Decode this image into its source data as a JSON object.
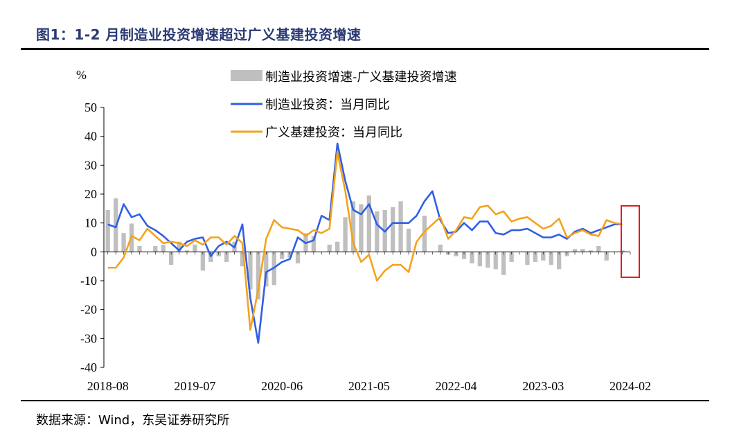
{
  "figure_title": "图1：1-2 月制造业投资增速超过广义基建投资增速",
  "source": "数据来源：Wind，东吴证券研究所",
  "colors": {
    "bar": "#bfbfbf",
    "manufacturing": "#2f5fe5",
    "infrastructure": "#f5a21b",
    "highlight": "#e01e1e"
  },
  "chart_data": {
    "type": "bar+line",
    "title": "",
    "ylabel": "%",
    "ylim": [
      -40,
      50
    ],
    "yticks": [
      50,
      40,
      30,
      20,
      10,
      0,
      -10,
      -20,
      -30,
      -40
    ],
    "xtick_labels": [
      "2018-08",
      "2019-07",
      "2020-06",
      "2021-05",
      "2022-04",
      "2023-03",
      "2024-02"
    ],
    "xtick_indices": [
      0,
      11,
      22,
      33,
      44,
      55,
      66
    ],
    "legend": [
      "制造业投资增速-广义基建投资增速",
      "制造业投资：当月同比",
      "广义基建投资：当月同比"
    ],
    "n_points": 67,
    "series": [
      {
        "name": "制造业投资增速-广义基建投资增速",
        "kind": "bar",
        "values": [
          14.5,
          18.5,
          6.5,
          9.8,
          2.0,
          null,
          2.0,
          2.5,
          -4.5,
          3.5,
          0.5,
          2.5,
          -6.5,
          -3.5,
          -1.5,
          -3.5,
          3.5,
          -5,
          -13,
          -16.5,
          -12,
          -11.5,
          -2.5,
          -2.0,
          -4.0,
          6.5,
          5.5,
          null,
          2.5,
          3.5,
          12.0,
          17.5,
          16.5,
          19.5,
          14.0,
          14.5,
          15.5,
          17.5,
          8.0,
          null,
          12.5,
          null,
          2.5,
          -1.0,
          -1.5,
          -2.5,
          -4.0,
          -5.0,
          -5.5,
          -6.0,
          -8.0,
          -3.5,
          null,
          -4.5,
          -3.5,
          -3.0,
          -4.5,
          -6.0,
          -1.5,
          1.0,
          1.0,
          0.5,
          2.0,
          -3.0,
          null,
          0.5,
          null
        ],
        "values_clean": true
      },
      {
        "name": "制造业投资：当月同比",
        "kind": "line",
        "values": [
          9.5,
          8.5,
          16.5,
          12.0,
          13.0,
          9.0,
          7.5,
          5.5,
          3.0,
          0.5,
          3.5,
          4.5,
          5.0,
          -1.5,
          2.0,
          3.5,
          1.5,
          9.5,
          -16,
          -31.5,
          -7.0,
          -5.5,
          -3.5,
          -2.5,
          5.0,
          3.0,
          4.0,
          12.5,
          11.0,
          37.5,
          24.5,
          14.5,
          13.0,
          16.5,
          9.5,
          7.0,
          10.0,
          10.0,
          10.0,
          12.5,
          17.5,
          21.0,
          11.0,
          6.5,
          7.0,
          10.0,
          7.5,
          10.5,
          10.5,
          6.5,
          6.0,
          7.5,
          7.5,
          8.0,
          6.5,
          5.0,
          5.0,
          6.0,
          4.5,
          7.0,
          8.0,
          6.5,
          7.5,
          8.5,
          9.5,
          9.5,
          null
        ]
      },
      {
        "name": "广义基建投资：当月同比",
        "kind": "line",
        "values": [
          -5.5,
          -5.5,
          -2.0,
          5.5,
          4.0,
          8.0,
          5.5,
          3.0,
          3.5,
          3.0,
          2.0,
          4.0,
          2.5,
          5.0,
          5.0,
          2.5,
          5.5,
          3.0,
          -27.0,
          -13,
          4.5,
          11.0,
          8.5,
          8.0,
          7.5,
          5.5,
          7.5,
          6.5,
          8.0,
          34.5,
          21.0,
          3.0,
          -3.5,
          -1.0,
          -10.0,
          -6.5,
          -4.5,
          -4.5,
          -7.0,
          3.5,
          7.0,
          9.5,
          12.0,
          4.5,
          7.5,
          12.0,
          11.5,
          15.5,
          16.0,
          13.0,
          14.0,
          10.5,
          11.5,
          12.0,
          10.0,
          8.0,
          9.0,
          11.5,
          5.0,
          6.5,
          7.5,
          6.0,
          5.5,
          11.0,
          10.0,
          9.5,
          null
        ]
      }
    ]
  }
}
